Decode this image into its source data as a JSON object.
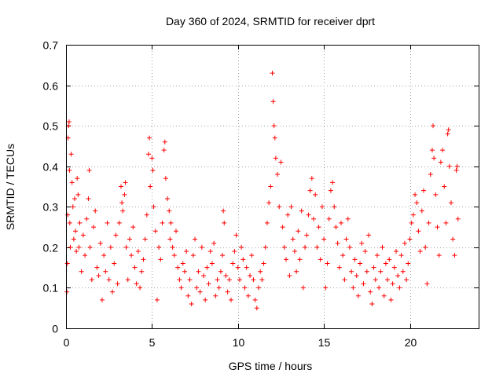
{
  "chart_data": {
    "type": "scatter",
    "title": "Day 360 of 2024, SRMTID for receiver dprt",
    "xlabel": "GPS time / hours",
    "ylabel": "SRMTID / TECUs",
    "xlim": [
      0,
      24
    ],
    "ylim": [
      0,
      0.7
    ],
    "xticks": [
      0,
      5,
      10,
      15,
      20
    ],
    "xtick_labels": [
      "0",
      "5",
      "10",
      "15",
      "20"
    ],
    "yticks": [
      0,
      0.1,
      0.2,
      0.3,
      0.4,
      0.5,
      0.6,
      0.7
    ],
    "ytick_labels": [
      "0",
      "0.1",
      "0.2",
      "0.3",
      "0.4",
      "0.5",
      "0.6",
      "0.7"
    ],
    "grid": true,
    "marker": "+",
    "color": "#ff0000",
    "series": [
      {
        "name": "SRMTID",
        "points": [
          [
            0.05,
            0.09
          ],
          [
            0.08,
            0.16
          ],
          [
            0.1,
            0.28
          ],
          [
            0.12,
            0.47
          ],
          [
            0.15,
            0.5
          ],
          [
            0.18,
            0.51
          ],
          [
            0.2,
            0.39
          ],
          [
            0.22,
            0.26
          ],
          [
            0.25,
            0.2
          ],
          [
            0.3,
            0.43
          ],
          [
            0.35,
            0.36
          ],
          [
            0.4,
            0.3
          ],
          [
            0.45,
            0.22
          ],
          [
            0.5,
            0.32
          ],
          [
            0.55,
            0.24
          ],
          [
            0.6,
            0.19
          ],
          [
            0.65,
            0.37
          ],
          [
            0.7,
            0.33
          ],
          [
            0.75,
            0.2
          ],
          [
            0.8,
            0.26
          ],
          [
            0.9,
            0.14
          ],
          [
            1.0,
            0.23
          ],
          [
            1.1,
            0.18
          ],
          [
            1.2,
            0.27
          ],
          [
            1.3,
            0.32
          ],
          [
            1.35,
            0.39
          ],
          [
            1.4,
            0.2
          ],
          [
            1.5,
            0.12
          ],
          [
            1.6,
            0.25
          ],
          [
            1.7,
            0.29
          ],
          [
            1.8,
            0.15
          ],
          [
            1.9,
            0.13
          ],
          [
            2.0,
            0.21
          ],
          [
            2.1,
            0.07
          ],
          [
            2.2,
            0.18
          ],
          [
            2.3,
            0.14
          ],
          [
            2.4,
            0.26
          ],
          [
            2.5,
            0.12
          ],
          [
            2.6,
            0.2
          ],
          [
            2.7,
            0.09
          ],
          [
            2.8,
            0.16
          ],
          [
            2.9,
            0.23
          ],
          [
            3.0,
            0.11
          ],
          [
            3.1,
            0.26
          ],
          [
            3.2,
            0.35
          ],
          [
            3.25,
            0.31
          ],
          [
            3.3,
            0.29
          ],
          [
            3.4,
            0.33
          ],
          [
            3.45,
            0.36
          ],
          [
            3.5,
            0.2
          ],
          [
            3.6,
            0.12
          ],
          [
            3.7,
            0.22
          ],
          [
            3.8,
            0.18
          ],
          [
            3.9,
            0.25
          ],
          [
            4.0,
            0.15
          ],
          [
            4.1,
            0.11
          ],
          [
            4.2,
            0.19
          ],
          [
            4.3,
            0.1
          ],
          [
            4.4,
            0.14
          ],
          [
            4.5,
            0.17
          ],
          [
            4.6,
            0.22
          ],
          [
            4.7,
            0.28
          ],
          [
            4.8,
            0.43
          ],
          [
            4.85,
            0.47
          ],
          [
            4.9,
            0.35
          ],
          [
            5.0,
            0.42
          ],
          [
            5.05,
            0.39
          ],
          [
            5.1,
            0.3
          ],
          [
            5.2,
            0.24
          ],
          [
            5.3,
            0.07
          ],
          [
            5.4,
            0.2
          ],
          [
            5.5,
            0.17
          ],
          [
            5.6,
            0.26
          ],
          [
            5.7,
            0.44
          ],
          [
            5.75,
            0.46
          ],
          [
            5.8,
            0.37
          ],
          [
            5.9,
            0.32
          ],
          [
            6.0,
            0.29
          ],
          [
            6.05,
            0.22
          ],
          [
            6.1,
            0.26
          ],
          [
            6.2,
            0.2
          ],
          [
            6.3,
            0.18
          ],
          [
            6.4,
            0.24
          ],
          [
            6.5,
            0.15
          ],
          [
            6.6,
            0.12
          ],
          [
            6.7,
            0.1
          ],
          [
            6.8,
            0.16
          ],
          [
            6.9,
            0.14
          ],
          [
            7.0,
            0.19
          ],
          [
            7.1,
            0.08
          ],
          [
            7.2,
            0.12
          ],
          [
            7.3,
            0.06
          ],
          [
            7.4,
            0.18
          ],
          [
            7.5,
            0.22
          ],
          [
            7.6,
            0.1
          ],
          [
            7.7,
            0.14
          ],
          [
            7.8,
            0.09
          ],
          [
            7.9,
            0.2
          ],
          [
            8.0,
            0.13
          ],
          [
            8.1,
            0.07
          ],
          [
            8.2,
            0.15
          ],
          [
            8.3,
            0.11
          ],
          [
            8.4,
            0.19
          ],
          [
            8.5,
            0.16
          ],
          [
            8.6,
            0.21
          ],
          [
            8.7,
            0.08
          ],
          [
            8.8,
            0.12
          ],
          [
            8.9,
            0.1
          ],
          [
            9.0,
            0.14
          ],
          [
            9.1,
            0.18
          ],
          [
            9.15,
            0.29
          ],
          [
            9.2,
            0.26
          ],
          [
            9.3,
            0.13
          ],
          [
            9.4,
            0.09
          ],
          [
            9.5,
            0.12
          ],
          [
            9.6,
            0.07
          ],
          [
            9.7,
            0.16
          ],
          [
            9.8,
            0.19
          ],
          [
            9.9,
            0.23
          ],
          [
            10.0,
            0.15
          ],
          [
            10.1,
            0.12
          ],
          [
            10.2,
            0.2
          ],
          [
            10.3,
            0.17
          ],
          [
            10.4,
            0.1
          ],
          [
            10.5,
            0.15
          ],
          [
            10.6,
            0.08
          ],
          [
            10.7,
            0.13
          ],
          [
            10.8,
            0.18
          ],
          [
            10.9,
            0.12
          ],
          [
            11.0,
            0.07
          ],
          [
            11.1,
            0.05
          ],
          [
            11.2,
            0.1
          ],
          [
            11.3,
            0.14
          ],
          [
            11.4,
            0.12
          ],
          [
            11.5,
            0.16
          ],
          [
            11.6,
            0.2
          ],
          [
            11.7,
            0.26
          ],
          [
            11.8,
            0.31
          ],
          [
            11.9,
            0.35
          ],
          [
            12.0,
            0.63
          ],
          [
            12.05,
            0.56
          ],
          [
            12.1,
            0.5
          ],
          [
            12.15,
            0.47
          ],
          [
            12.2,
            0.42
          ],
          [
            12.3,
            0.38
          ],
          [
            12.4,
            0.3
          ],
          [
            12.5,
            0.41
          ],
          [
            12.6,
            0.25
          ],
          [
            12.7,
            0.2
          ],
          [
            12.8,
            0.17
          ],
          [
            12.9,
            0.28
          ],
          [
            13.0,
            0.13
          ],
          [
            13.1,
            0.3
          ],
          [
            13.2,
            0.22
          ],
          [
            13.3,
            0.19
          ],
          [
            13.4,
            0.14
          ],
          [
            13.5,
            0.24
          ],
          [
            13.6,
            0.17
          ],
          [
            13.7,
            0.29
          ],
          [
            13.8,
            0.1
          ],
          [
            13.9,
            0.2
          ],
          [
            14.0,
            0.23
          ],
          [
            14.1,
            0.28
          ],
          [
            14.2,
            0.34
          ],
          [
            14.3,
            0.37
          ],
          [
            14.4,
            0.27
          ],
          [
            14.5,
            0.33
          ],
          [
            14.6,
            0.2
          ],
          [
            14.7,
            0.25
          ],
          [
            14.8,
            0.17
          ],
          [
            14.9,
            0.3
          ],
          [
            15.0,
            0.22
          ],
          [
            15.1,
            0.1
          ],
          [
            15.2,
            0.16
          ],
          [
            15.3,
            0.27
          ],
          [
            15.4,
            0.34
          ],
          [
            15.5,
            0.36
          ],
          [
            15.6,
            0.3
          ],
          [
            15.7,
            0.25
          ],
          [
            15.8,
            0.21
          ],
          [
            15.9,
            0.15
          ],
          [
            16.0,
            0.26
          ],
          [
            16.1,
            0.18
          ],
          [
            16.2,
            0.12
          ],
          [
            16.3,
            0.22
          ],
          [
            16.4,
            0.27
          ],
          [
            16.5,
            0.2
          ],
          [
            16.6,
            0.14
          ],
          [
            16.7,
            0.1
          ],
          [
            16.8,
            0.17
          ],
          [
            16.9,
            0.13
          ],
          [
            17.0,
            0.08
          ],
          [
            17.1,
            0.16
          ],
          [
            17.2,
            0.21
          ],
          [
            17.3,
            0.11
          ],
          [
            17.4,
            0.19
          ],
          [
            17.5,
            0.14
          ],
          [
            17.6,
            0.23
          ],
          [
            17.7,
            0.09
          ],
          [
            17.8,
            0.06
          ],
          [
            17.9,
            0.15
          ],
          [
            18.0,
            0.12
          ],
          [
            18.1,
            0.18
          ],
          [
            18.2,
            0.1
          ],
          [
            18.3,
            0.14
          ],
          [
            18.4,
            0.2
          ],
          [
            18.5,
            0.08
          ],
          [
            18.6,
            0.16
          ],
          [
            18.7,
            0.12
          ],
          [
            18.8,
            0.17
          ],
          [
            18.9,
            0.07
          ],
          [
            19.0,
            0.11
          ],
          [
            19.1,
            0.15
          ],
          [
            19.2,
            0.19
          ],
          [
            19.3,
            0.13
          ],
          [
            19.4,
            0.1
          ],
          [
            19.5,
            0.18
          ],
          [
            19.6,
            0.14
          ],
          [
            19.7,
            0.21
          ],
          [
            19.8,
            0.12
          ],
          [
            19.9,
            0.16
          ],
          [
            20.0,
            0.22
          ],
          [
            20.1,
            0.26
          ],
          [
            20.2,
            0.28
          ],
          [
            20.3,
            0.33
          ],
          [
            20.4,
            0.31
          ],
          [
            20.5,
            0.24
          ],
          [
            20.6,
            0.19
          ],
          [
            20.7,
            0.29
          ],
          [
            20.8,
            0.34
          ],
          [
            20.9,
            0.2
          ],
          [
            21.0,
            0.11
          ],
          [
            21.1,
            0.26
          ],
          [
            21.2,
            0.38
          ],
          [
            21.3,
            0.44
          ],
          [
            21.35,
            0.5
          ],
          [
            21.4,
            0.42
          ],
          [
            21.5,
            0.33
          ],
          [
            21.6,
            0.25
          ],
          [
            21.7,
            0.18
          ],
          [
            21.8,
            0.41
          ],
          [
            21.9,
            0.44
          ],
          [
            22.0,
            0.35
          ],
          [
            22.1,
            0.26
          ],
          [
            22.2,
            0.48
          ],
          [
            22.25,
            0.49
          ],
          [
            22.3,
            0.4
          ],
          [
            22.4,
            0.31
          ],
          [
            22.5,
            0.22
          ],
          [
            22.6,
            0.18
          ],
          [
            22.7,
            0.39
          ],
          [
            22.75,
            0.4
          ],
          [
            22.8,
            0.27
          ]
        ]
      }
    ]
  }
}
